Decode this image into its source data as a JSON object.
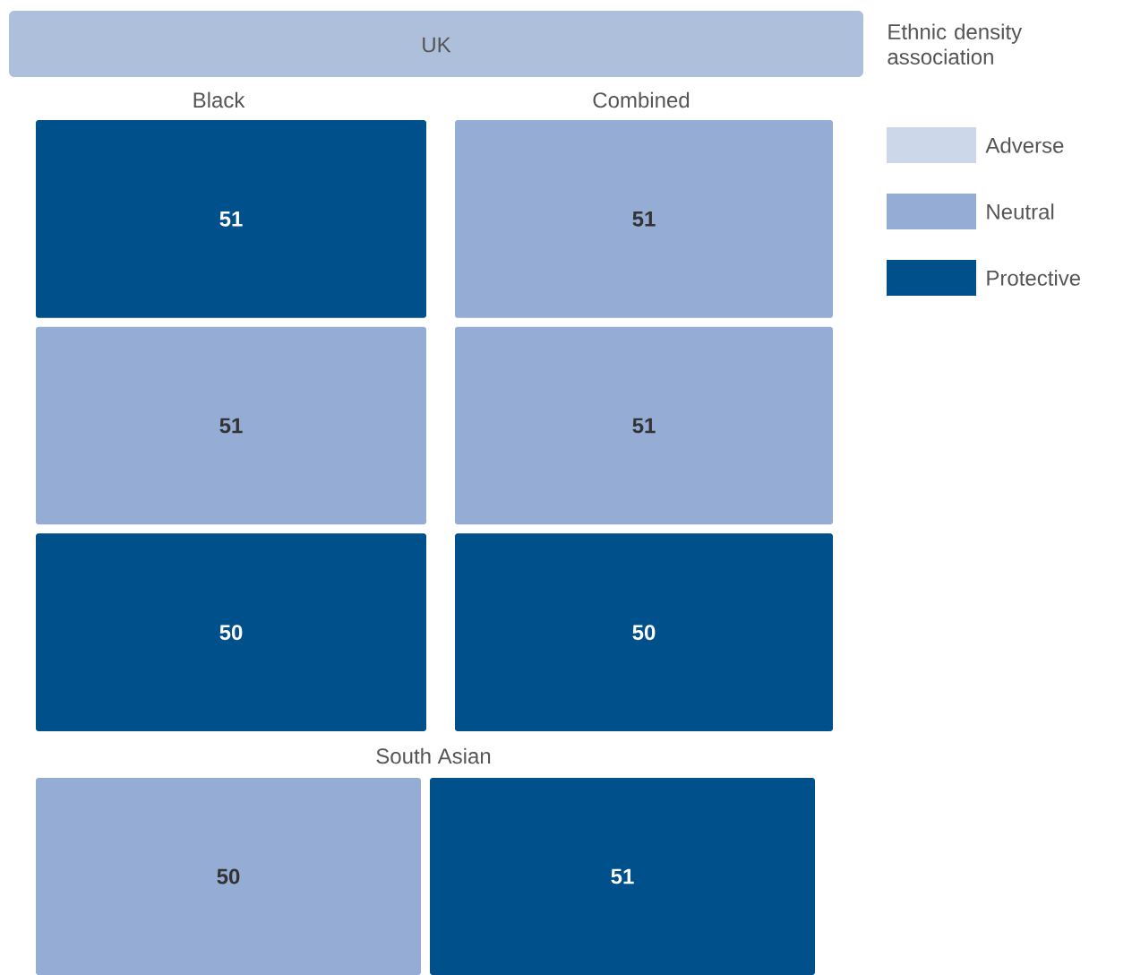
{
  "chart_data": [
    {
      "type": "other",
      "title": "UK",
      "subtitle": "Black",
      "data_labels": true,
      "categories": [
        null,
        null,
        null
      ],
      "values": [
        51,
        51,
        50
      ],
      "colors": [
        "#00508c",
        "#95acd4",
        "#00508c"
      ]
    },
    {
      "type": "other",
      "subtitle": "Combined",
      "data_labels": true,
      "categories": [
        null,
        null,
        null
      ],
      "values": [
        51,
        51,
        50
      ],
      "colors": [
        "#95acd4",
        "#95acd4",
        "#00508c"
      ]
    },
    {
      "type": "other",
      "subtitle": "South Asian",
      "data_labels": true,
      "categories": [
        null,
        null
      ],
      "values": [
        50,
        51
      ],
      "colors": [
        "#95acd4",
        "#00508c"
      ]
    },
    {
      "type": "other",
      "legend_title": "Ethnic density association",
      "legend": "right",
      "series": [
        {
          "name": "Adverse",
          "color": "#ccd7ea"
        },
        {
          "name": "Neutral",
          "color": "#95acd4"
        },
        {
          "name": "Protective",
          "color": "#00508c"
        }
      ]
    }
  ]
}
